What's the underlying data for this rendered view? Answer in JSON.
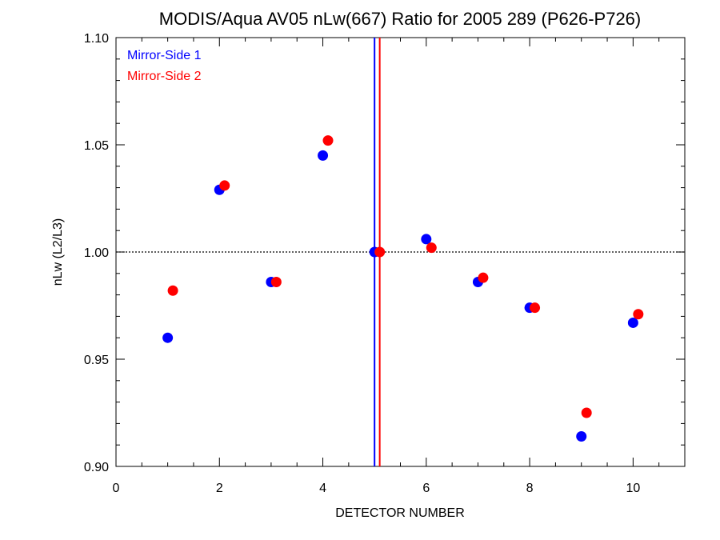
{
  "chart_data": {
    "type": "scatter",
    "title": "MODIS/Aqua AV05 nLw(667) Ratio for 2005 289 (P626-P726)",
    "xlabel": "DETECTOR NUMBER",
    "ylabel": "nLw (L2/L3)",
    "xlim": [
      0,
      11
    ],
    "ylim": [
      0.9,
      1.1
    ],
    "x_ticks": [
      0,
      2,
      4,
      6,
      8,
      10
    ],
    "x_tick_labels": [
      "0",
      "2",
      "4",
      "6",
      "8",
      "10"
    ],
    "y_ticks": [
      0.9,
      0.95,
      1.0,
      1.05,
      1.1
    ],
    "y_tick_labels": [
      "0.90",
      "0.95",
      "1.00",
      "1.05",
      "1.10"
    ],
    "reference_line_y": 1.0,
    "legend_position": "top-left",
    "series": [
      {
        "name": "Mirror-Side 1",
        "color": "#0000ff",
        "x": [
          1,
          2,
          3,
          4,
          5,
          6,
          7,
          8,
          9,
          10
        ],
        "y": [
          0.96,
          1.029,
          0.986,
          1.045,
          1.0,
          1.006,
          0.986,
          0.974,
          0.914,
          0.967
        ],
        "vertical_marker_x": 5.0
      },
      {
        "name": "Mirror-Side 2",
        "color": "#ff0000",
        "x": [
          1.1,
          2.1,
          3.1,
          4.1,
          5.1,
          6.1,
          7.1,
          8.1,
          9.1,
          10.1
        ],
        "y": [
          0.982,
          1.031,
          0.986,
          1.052,
          1.0,
          1.002,
          0.988,
          0.974,
          0.925,
          0.971
        ],
        "vertical_marker_x": 5.1
      }
    ]
  }
}
